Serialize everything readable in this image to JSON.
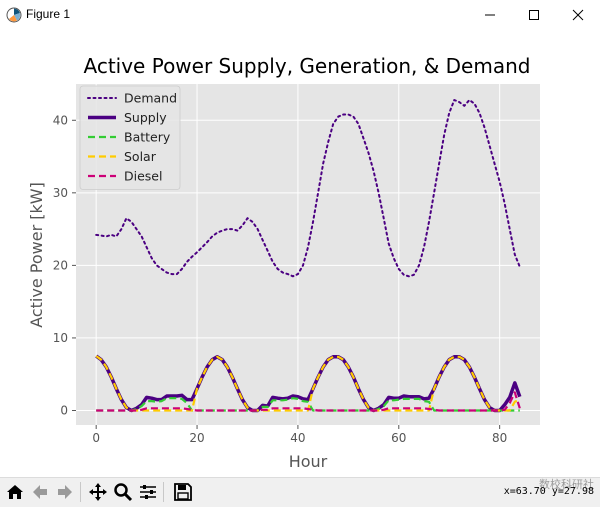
{
  "window": {
    "title": "Figure 1"
  },
  "toolbar": {
    "coords": "x=63.70 y=27.98",
    "watermark": "数校科研社"
  },
  "chart_data": {
    "type": "line",
    "title": "Active Power Supply, Generation, & Demand",
    "xlabel": "Hour",
    "ylabel": "Active Power [kW]",
    "xlim": [
      -4,
      88
    ],
    "ylim": [
      -2,
      45
    ],
    "xticks": [
      0,
      20,
      40,
      60,
      80
    ],
    "yticks": [
      0,
      10,
      20,
      30,
      40
    ],
    "grid": true,
    "legend_position": "top-left",
    "series": [
      {
        "name": "Demand",
        "color": "#4b0082",
        "style": "dotted",
        "x": [
          0,
          1,
          2,
          3,
          4,
          5,
          6,
          7,
          8,
          9,
          10,
          11,
          12,
          13,
          14,
          15,
          16,
          17,
          18,
          19,
          20,
          21,
          22,
          23,
          24,
          25,
          26,
          27,
          28,
          29,
          30,
          31,
          32,
          33,
          34,
          35,
          36,
          37,
          38,
          39,
          40,
          41,
          42,
          43,
          44,
          45,
          46,
          47,
          48,
          49,
          50,
          51,
          52,
          53,
          54,
          55,
          56,
          57,
          58,
          59,
          60,
          61,
          62,
          63,
          64,
          65,
          66,
          67,
          68,
          69,
          70,
          71,
          72,
          73,
          74,
          75,
          76,
          77,
          78,
          79,
          80,
          81,
          82,
          83,
          84
        ],
        "y": [
          24.2,
          24.1,
          24,
          24.2,
          24,
          25,
          26.5,
          26,
          25,
          24,
          22.5,
          21,
          20,
          19.5,
          19,
          18.8,
          18.8,
          19.5,
          20.5,
          21.2,
          21.8,
          22.5,
          23.2,
          24,
          24.5,
          24.8,
          25,
          25,
          24.8,
          25.5,
          26.5,
          26,
          25,
          23.5,
          22,
          20.5,
          19.5,
          19,
          18.8,
          18.5,
          18.8,
          20,
          22.5,
          26,
          30,
          34,
          37,
          39.5,
          40.5,
          40.8,
          40.8,
          40.5,
          39.5,
          37.5,
          35.5,
          33,
          30,
          26.5,
          23,
          21,
          19.5,
          18.7,
          18.5,
          18.7,
          20,
          22.5,
          26,
          30,
          34,
          38,
          41,
          42.8,
          42.5,
          42,
          42.8,
          42.3,
          41,
          39,
          36.5,
          34,
          31.5,
          28.5,
          25,
          21.5,
          19.8
        ]
      },
      {
        "name": "Supply",
        "color": "#4b0082",
        "style": "solid",
        "x": [
          0,
          1,
          2,
          3,
          4,
          5,
          6,
          7,
          8,
          9,
          10,
          11,
          12,
          13,
          14,
          15,
          16,
          17,
          18,
          19,
          20,
          21,
          22,
          23,
          24,
          25,
          26,
          27,
          28,
          29,
          30,
          31,
          32,
          33,
          34,
          35,
          36,
          37,
          38,
          39,
          40,
          41,
          42,
          43,
          44,
          45,
          46,
          47,
          48,
          49,
          50,
          51,
          52,
          53,
          54,
          55,
          56,
          57,
          58,
          59,
          60,
          61,
          62,
          63,
          64,
          65,
          66,
          67,
          68,
          69,
          70,
          71,
          72,
          73,
          74,
          75,
          76,
          77,
          78,
          79,
          80,
          81,
          82,
          83,
          84
        ],
        "y": [
          7.5,
          7.0,
          6.0,
          4.6,
          3.0,
          1.5,
          0.4,
          0.0,
          0.3,
          0.8,
          1.8,
          1.7,
          1.5,
          1.5,
          2.0,
          2.0,
          2.0,
          2.1,
          1.5,
          1.5,
          3.0,
          4.6,
          6.0,
          7.0,
          7.4,
          7.0,
          6.0,
          4.6,
          3.0,
          1.5,
          0.4,
          0.0,
          0.0,
          0.7,
          0.6,
          1.8,
          1.7,
          1.6,
          1.7,
          2.0,
          1.9,
          1.6,
          1.5,
          3.0,
          4.6,
          6.0,
          7.0,
          7.4,
          7.4,
          7.0,
          6.0,
          4.6,
          3.0,
          1.5,
          0.4,
          0.0,
          0.3,
          0.8,
          1.8,
          1.7,
          1.7,
          2.0,
          1.9,
          1.9,
          1.9,
          1.6,
          1.7,
          3.0,
          4.6,
          6.0,
          7.0,
          7.4,
          7.4,
          7.0,
          6.0,
          4.6,
          3.0,
          1.5,
          0.4,
          0.0,
          0.0,
          0.8,
          1.8,
          3.8,
          1.9
        ]
      },
      {
        "name": "Battery",
        "color": "#33cc33",
        "style": "dashed",
        "x": [
          0,
          6,
          7,
          8,
          9,
          10,
          11,
          12,
          13,
          14,
          15,
          16,
          17,
          18,
          19,
          30,
          31,
          32,
          33,
          34,
          35,
          36,
          37,
          38,
          39,
          40,
          41,
          42,
          43,
          54,
          55,
          56,
          57,
          58,
          59,
          60,
          61,
          62,
          63,
          64,
          65,
          66,
          67,
          78,
          79,
          80,
          81,
          82,
          83,
          84
        ],
        "y": [
          0,
          0,
          0,
          0.2,
          0.6,
          1.3,
          1.3,
          1.2,
          1.3,
          1.7,
          1.7,
          1.7,
          1.6,
          1.0,
          0,
          0,
          0,
          0,
          0.5,
          0.5,
          1.4,
          1.4,
          1.4,
          1.5,
          1.7,
          1.6,
          1.3,
          1.2,
          0,
          0,
          0,
          0.2,
          0.6,
          1.4,
          1.4,
          1.5,
          1.6,
          1.6,
          1.6,
          1.6,
          1.3,
          1.2,
          0,
          0,
          0,
          0,
          0,
          0,
          0,
          0
        ]
      },
      {
        "name": "Solar",
        "color": "#ffcc00",
        "style": "dashed",
        "x": [
          0,
          1,
          2,
          3,
          4,
          5,
          6,
          7,
          8,
          9,
          10,
          11,
          12,
          13,
          14,
          15,
          16,
          17,
          18,
          19,
          20,
          21,
          22,
          23,
          24,
          25,
          26,
          27,
          28,
          29,
          30,
          31,
          32,
          33,
          34,
          35,
          36,
          37,
          38,
          39,
          40,
          41,
          42,
          43,
          44,
          45,
          46,
          47,
          48,
          49,
          50,
          51,
          52,
          53,
          54,
          55,
          56,
          57,
          58,
          59,
          60,
          61,
          62,
          63,
          64,
          65,
          66,
          67,
          68,
          69,
          70,
          71,
          72,
          73,
          74,
          75,
          76,
          77,
          78,
          79,
          80,
          81,
          82,
          83,
          84
        ],
        "y": [
          7.5,
          7.0,
          6.0,
          4.6,
          3.0,
          1.5,
          0.4,
          0,
          0,
          0,
          0,
          0,
          0,
          0,
          0,
          0,
          0,
          0,
          0,
          0,
          3.0,
          4.6,
          6.0,
          7.0,
          7.4,
          7.0,
          6.0,
          4.6,
          3.0,
          1.5,
          0.4,
          0,
          0,
          0,
          0,
          0,
          0,
          0,
          0,
          0,
          0,
          0,
          0,
          3.0,
          4.6,
          6.0,
          7.0,
          7.4,
          7.4,
          7.0,
          6.0,
          4.6,
          3.0,
          1.5,
          0.4,
          0,
          0,
          0,
          0,
          0,
          0,
          0,
          0,
          0,
          0,
          0,
          0,
          3.0,
          4.6,
          6.0,
          7.0,
          7.4,
          7.4,
          7.0,
          6.0,
          4.6,
          3.0,
          1.5,
          0.4,
          0,
          0,
          0,
          0,
          1.2,
          1.5
        ]
      },
      {
        "name": "Diesel",
        "color": "#cc0077",
        "style": "dashed",
        "x": [
          0,
          6,
          7,
          8,
          9,
          10,
          11,
          12,
          13,
          14,
          15,
          16,
          17,
          18,
          19,
          20,
          30,
          31,
          32,
          33,
          34,
          35,
          36,
          37,
          38,
          39,
          40,
          41,
          42,
          43,
          44,
          54,
          55,
          56,
          57,
          58,
          59,
          60,
          61,
          62,
          63,
          64,
          65,
          66,
          67,
          68,
          78,
          79,
          80,
          81,
          82,
          83,
          84
        ],
        "y": [
          0,
          0,
          0,
          0,
          0.1,
          0.3,
          0.3,
          0.3,
          0.3,
          0.3,
          0.3,
          0.3,
          0.3,
          0.2,
          0.1,
          0,
          0,
          0,
          0,
          0.1,
          0.1,
          0.3,
          0.3,
          0.3,
          0.3,
          0.3,
          0.3,
          0.3,
          0.2,
          0.1,
          0,
          0,
          0,
          0,
          0.1,
          0.3,
          0.3,
          0.3,
          0.3,
          0.3,
          0.3,
          0.3,
          0.3,
          0.2,
          0.1,
          0,
          0,
          0,
          0,
          0.1,
          1.0,
          2.5,
          0.3
        ]
      }
    ]
  }
}
